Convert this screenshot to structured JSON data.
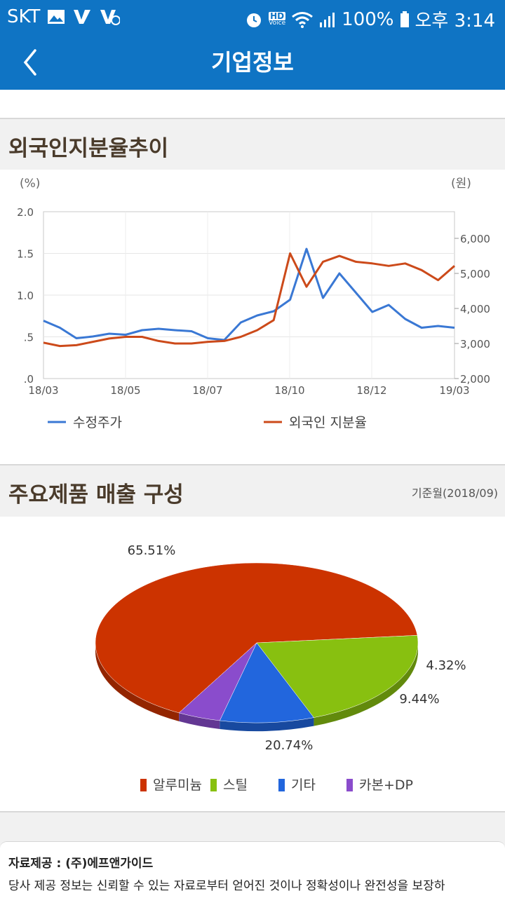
{
  "status_bar": {
    "carrier": "SKT",
    "battery": "100%",
    "time": "오후 3:14",
    "hd_label": "HD",
    "voice_label": "Voice",
    "icons": [
      "gallery-icon",
      "app-v-icon",
      "app-v-icon",
      "alarm-icon",
      "hd-voice-icon",
      "wifi-icon",
      "signal-icon",
      "battery-icon"
    ]
  },
  "header": {
    "title": "기업정보",
    "back_icon": "chevron-left-icon"
  },
  "foreign_section": {
    "title": "외국인지분율추이",
    "chart_data": {
      "type": "line",
      "left_unit": "(%)",
      "right_unit": "(원)",
      "x_ticks": [
        "18/03",
        "18/05",
        "18/07",
        "18/10",
        "18/12",
        "19/03"
      ],
      "left_ticks": [
        "2.0",
        "1.5",
        "1.0",
        ".5",
        ".0"
      ],
      "left_ylim": [
        0,
        2.0
      ],
      "right_ticks": [
        "6,000",
        "5,000",
        "4,000",
        "3,000",
        "2,000"
      ],
      "right_ylim": [
        2000,
        6000
      ],
      "grid": true,
      "series": [
        {
          "name": "수정주가",
          "axis": "right",
          "color": "#3a78d4",
          "x": [
            0,
            4,
            8,
            12,
            16,
            20,
            24,
            28,
            32,
            36,
            40,
            44,
            48,
            52,
            56,
            60,
            64,
            68,
            72,
            76,
            80,
            84,
            88,
            92,
            96,
            100
          ],
          "values": [
            3650,
            3450,
            3150,
            3200,
            3280,
            3250,
            3380,
            3420,
            3380,
            3350,
            3150,
            3100,
            3600,
            3800,
            3920,
            4250,
            5700,
            4300,
            5000,
            4450,
            3900,
            4100,
            3700,
            3450,
            3500,
            3450
          ]
        },
        {
          "name": "외국인 지분율",
          "axis": "left",
          "color": "#cc4a1a",
          "x": [
            0,
            4,
            8,
            12,
            16,
            20,
            24,
            28,
            32,
            36,
            40,
            44,
            48,
            52,
            56,
            60,
            64,
            68,
            72,
            76,
            80,
            84,
            88,
            92,
            96,
            100
          ],
          "values": [
            0.43,
            0.39,
            0.4,
            0.44,
            0.48,
            0.5,
            0.5,
            0.45,
            0.42,
            0.42,
            0.44,
            0.45,
            0.5,
            0.58,
            0.7,
            1.5,
            1.1,
            1.4,
            1.47,
            1.4,
            1.38,
            1.35,
            1.38,
            1.3,
            1.18,
            1.35
          ]
        }
      ]
    }
  },
  "product_section": {
    "title": "주요제품 매출 구성",
    "basis": "기준월(2018/09)",
    "chart_data": {
      "type": "pie",
      "slices": [
        {
          "label": "알루미늄",
          "value": 65.51,
          "display": "65.51%",
          "color": "#cc3300"
        },
        {
          "label": "스틸",
          "value": 20.74,
          "display": "20.74%",
          "color": "#88c010"
        },
        {
          "label": "기타",
          "value": 9.44,
          "display": "9.44%",
          "color": "#2266dd"
        },
        {
          "label": "카본+DP",
          "value": 4.32,
          "display": "4.32%",
          "color": "#8a4ccc"
        }
      ]
    }
  },
  "footer": {
    "source": "자료제공 : (주)에프앤가이드",
    "notice": "당사 제공 정보는 신뢰할 수 있는 자료로부터 얻어진 것이나 정확성이나 완전성을 보장하"
  }
}
